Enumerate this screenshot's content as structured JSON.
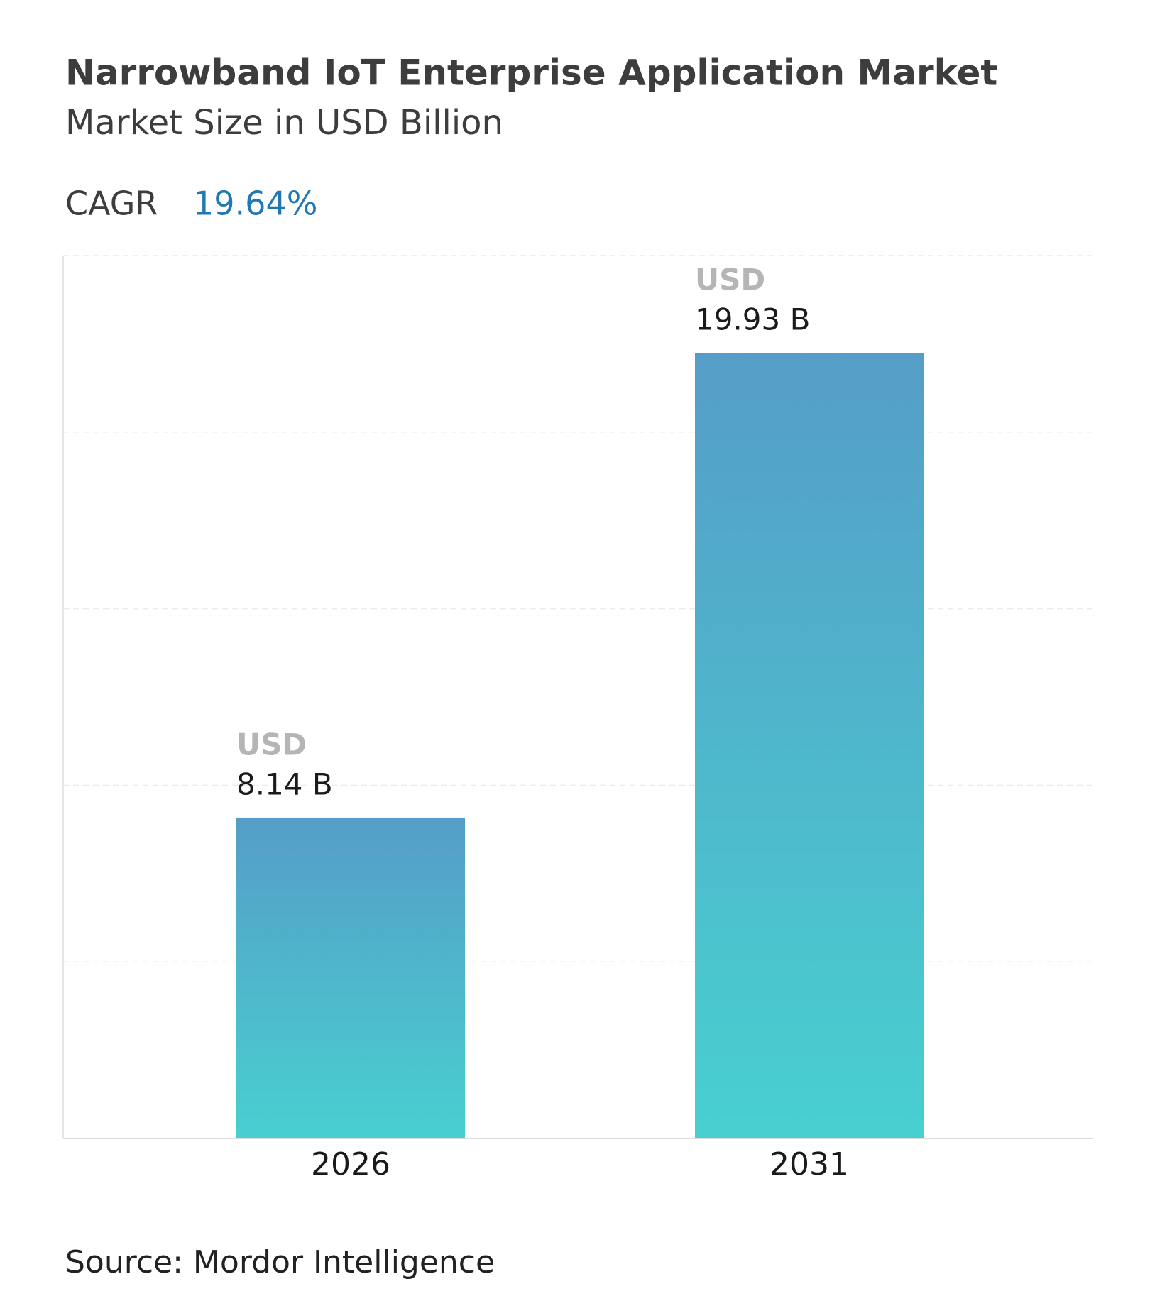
{
  "chart_data": {
    "type": "bar",
    "title": "Narrowband IoT Enterprise Application Market",
    "subtitle": "Market Size in USD Billion",
    "cagr_label": "CAGR",
    "cagr_value": "19.64%",
    "categories": [
      "2026",
      "2031"
    ],
    "values": [
      8.14,
      19.93
    ],
    "value_label_unit": "USD",
    "value_labels": [
      "8.14 B",
      "19.93 B"
    ],
    "color_top": "#559dc8",
    "color_bottom": "#48d0d0",
    "ylim": [
      0,
      22.4
    ],
    "grid": true,
    "source": "Source: Mordor Intelligence"
  }
}
